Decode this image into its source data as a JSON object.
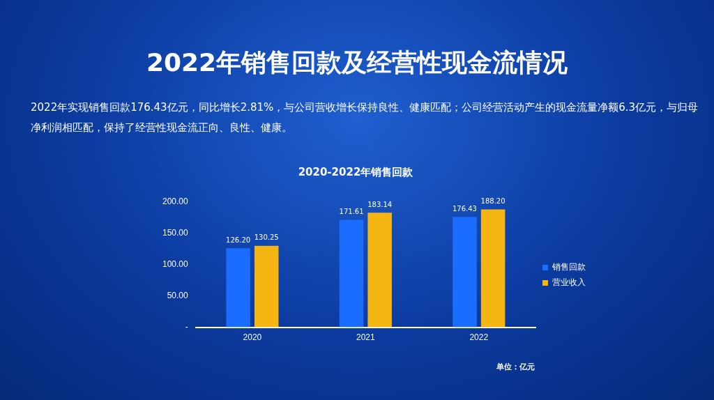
{
  "chart_data": {
    "type": "bar",
    "title": "2022年销售回款及经营性现金流情况",
    "subtitle": "2020-2022年销售回款",
    "annotations": [
      "2022年实现销售回款176.43亿元，同比增长2.81%，与公司营收增长保持良性、健康匹配；公司经营活动产生的现金流量净额6.3亿元，与归母净利润相匹配，保持了经营性现金流正向、良性、健康。",
      "单位：亿元"
    ],
    "categories": [
      "2020",
      "2021",
      "2022"
    ],
    "series": [
      {
        "name": "销售回款",
        "color": "#1a6dff",
        "values": [
          126.2,
          171.61,
          176.43
        ],
        "value_labels": [
          "126.20",
          "171.61",
          "176.43"
        ]
      },
      {
        "name": "营业收入",
        "color": "#f5b614",
        "values": [
          130.25,
          183.14,
          188.2
        ],
        "value_labels": [
          "130.25",
          "183.14",
          "188.20"
        ]
      }
    ],
    "ylim": [
      0,
      200
    ],
    "yticks": [
      {
        "value": 0,
        "label": "-"
      },
      {
        "value": 50,
        "label": "50.00"
      },
      {
        "value": 100,
        "label": "100.00"
      },
      {
        "value": 150,
        "label": "150.00"
      },
      {
        "value": 200,
        "label": "200.00"
      }
    ],
    "grid": false,
    "legend": "right"
  }
}
